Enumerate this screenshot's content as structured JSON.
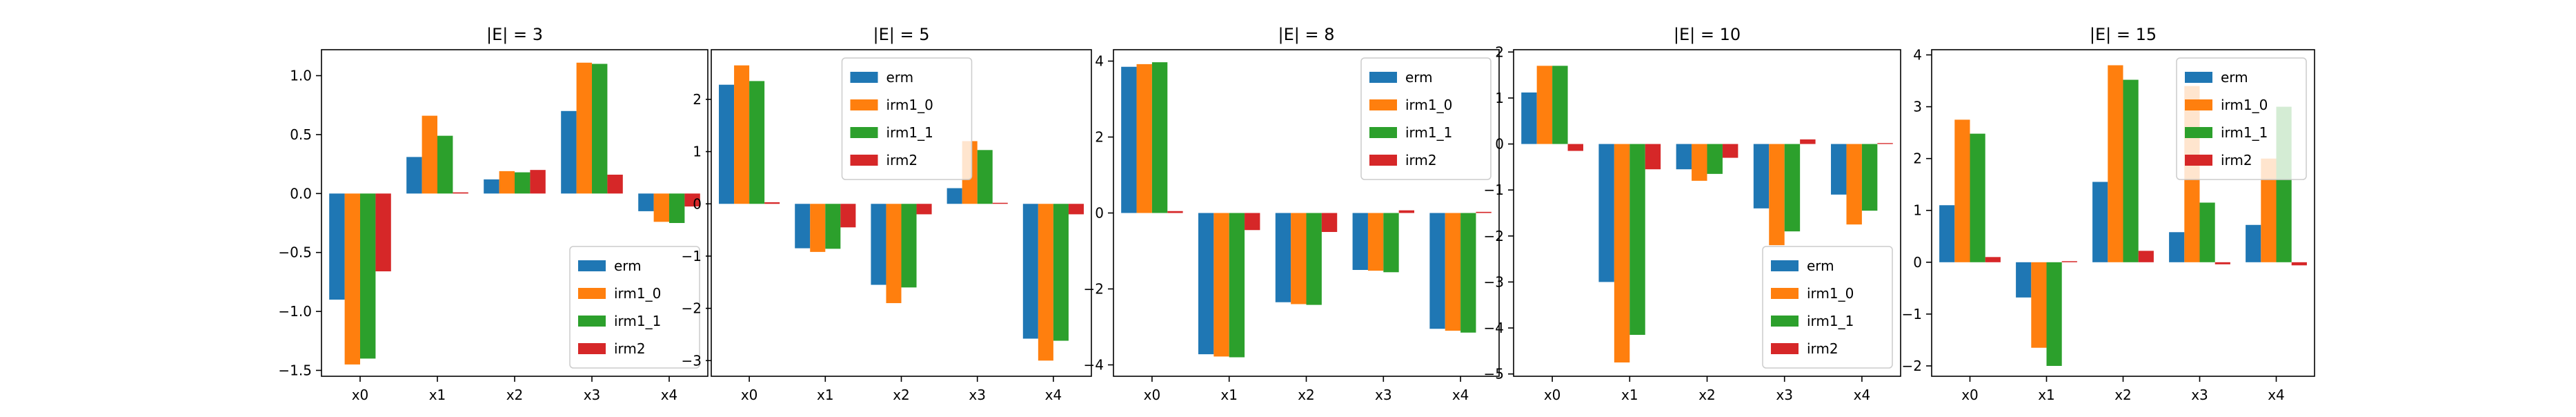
{
  "legend_colors": [
    "#1f77b4",
    "#ff7f0e",
    "#2ca02c",
    "#d62728"
  ],
  "chart_data": [
    {
      "type": "bar",
      "title": "|E| = 3",
      "categories": [
        "x0",
        "x1",
        "x2",
        "x3",
        "x4"
      ],
      "ylim": [
        -1.55,
        1.22
      ],
      "yticks": [
        -1.5,
        -1.0,
        -0.5,
        0.0,
        0.5,
        1.0
      ],
      "ytick_labels": [
        "−1.5",
        "−1.0",
        "−0.5",
        "0.0",
        "0.5",
        "1.0"
      ],
      "legend_position": "lower-right",
      "series": [
        {
          "name": "erm",
          "values": [
            -0.9,
            0.31,
            0.12,
            0.7,
            -0.15
          ]
        },
        {
          "name": "irm1_0",
          "values": [
            -1.45,
            0.66,
            0.19,
            1.11,
            -0.24
          ]
        },
        {
          "name": "irm1_1",
          "values": [
            -1.4,
            0.49,
            0.18,
            1.1,
            -0.25
          ]
        },
        {
          "name": "irm2",
          "values": [
            -0.66,
            0.01,
            0.2,
            0.16,
            -0.11
          ]
        }
      ]
    },
    {
      "type": "bar",
      "title": "|E| = 5",
      "categories": [
        "x0",
        "x1",
        "x2",
        "x3",
        "x4"
      ],
      "ylim": [
        -3.3,
        2.95
      ],
      "yticks": [
        -3,
        -2,
        -1,
        0,
        1,
        2
      ],
      "ytick_labels": [
        "−3",
        "−2",
        "−1",
        "0",
        "1",
        "2"
      ],
      "legend_position": "upper-center",
      "series": [
        {
          "name": "erm",
          "values": [
            2.28,
            -0.85,
            -1.55,
            0.3,
            -2.58
          ]
        },
        {
          "name": "irm1_0",
          "values": [
            2.65,
            -0.92,
            -1.9,
            1.2,
            -3.0
          ]
        },
        {
          "name": "irm1_1",
          "values": [
            2.35,
            -0.86,
            -1.6,
            1.03,
            -2.62
          ]
        },
        {
          "name": "irm2",
          "values": [
            0.03,
            -0.45,
            -0.2,
            0.02,
            -0.2
          ]
        }
      ]
    },
    {
      "type": "bar",
      "title": "|E| = 8",
      "categories": [
        "x0",
        "x1",
        "x2",
        "x3",
        "x4"
      ],
      "ylim": [
        -4.3,
        4.3
      ],
      "yticks": [
        -4,
        -2,
        0,
        2,
        4
      ],
      "ytick_labels": [
        "−4",
        "−2",
        "0",
        "2",
        "4"
      ],
      "legend_position": "upper-right",
      "series": [
        {
          "name": "erm",
          "values": [
            3.85,
            -3.72,
            -2.35,
            -1.5,
            -3.05
          ]
        },
        {
          "name": "irm1_0",
          "values": [
            3.92,
            -3.78,
            -2.4,
            -1.52,
            -3.1
          ]
        },
        {
          "name": "irm1_1",
          "values": [
            3.97,
            -3.8,
            -2.42,
            -1.56,
            -3.15
          ]
        },
        {
          "name": "irm2",
          "values": [
            0.05,
            -0.45,
            -0.5,
            0.07,
            0.03
          ]
        }
      ]
    },
    {
      "type": "bar",
      "title": "|E| = 10",
      "categories": [
        "x0",
        "x1",
        "x2",
        "x3",
        "x4"
      ],
      "ylim": [
        -5.05,
        2.05
      ],
      "yticks": [
        -5,
        -4,
        -3,
        -2,
        -1,
        0,
        1,
        2
      ],
      "ytick_labels": [
        "−5",
        "−4",
        "−3",
        "−2",
        "−1",
        "0",
        "1",
        "2"
      ],
      "legend_position": "lower-right",
      "series": [
        {
          "name": "erm",
          "values": [
            1.12,
            -3.0,
            -0.55,
            -1.4,
            -1.1
          ]
        },
        {
          "name": "irm1_0",
          "values": [
            1.7,
            -4.75,
            -0.8,
            -2.2,
            -1.75
          ]
        },
        {
          "name": "irm1_1",
          "values": [
            1.7,
            -4.15,
            -0.65,
            -1.9,
            -1.45
          ]
        },
        {
          "name": "irm2",
          "values": [
            -0.15,
            -0.55,
            -0.3,
            0.1,
            0.02
          ]
        }
      ]
    },
    {
      "type": "bar",
      "title": "|E| = 15",
      "categories": [
        "x0",
        "x1",
        "x2",
        "x3",
        "x4"
      ],
      "ylim": [
        -2.2,
        4.1
      ],
      "yticks": [
        -2,
        -1,
        0,
        1,
        2,
        3,
        4
      ],
      "ytick_labels": [
        "−2",
        "−1",
        "0",
        "1",
        "2",
        "3",
        "4"
      ],
      "legend_position": "upper-right",
      "series": [
        {
          "name": "erm",
          "values": [
            1.1,
            -0.68,
            1.55,
            0.58,
            0.72
          ]
        },
        {
          "name": "irm1_0",
          "values": [
            2.75,
            -1.65,
            3.8,
            3.4,
            2.0
          ]
        },
        {
          "name": "irm1_1",
          "values": [
            2.48,
            -2.0,
            3.52,
            1.15,
            3.0
          ]
        },
        {
          "name": "irm2",
          "values": [
            0.1,
            0.02,
            0.22,
            -0.04,
            -0.06
          ]
        }
      ]
    }
  ]
}
